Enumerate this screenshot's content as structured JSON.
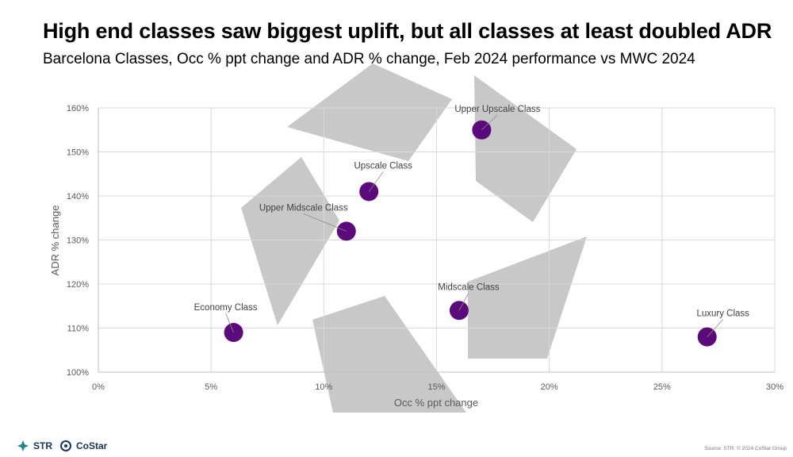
{
  "title": "High end classes saw biggest uplift, but all classes at least doubled ADR",
  "subtitle": "Barcelona Classes, Occ % ppt change and ADR % change, Feb 2024 performance vs MWC 2024",
  "footer": {
    "logo_str": "STR",
    "logo_costar": "CoStar",
    "source": "Source: STR. © 2024 CoStar Group"
  },
  "colors": {
    "point": "#5a0a7a",
    "grid": "#d9d9d9",
    "watermark": "#c8c8c8"
  },
  "chart_data": {
    "type": "scatter",
    "title": "",
    "xlabel": "Occ % ppt change",
    "ylabel": "ADR % change",
    "xlim": [
      0,
      30
    ],
    "ylim": [
      100,
      160
    ],
    "xticks": [
      0,
      5,
      10,
      15,
      20,
      25,
      30
    ],
    "xtick_labels": [
      "0%",
      "5%",
      "10%",
      "15%",
      "20%",
      "25%",
      "30%"
    ],
    "yticks": [
      100,
      110,
      120,
      130,
      140,
      150,
      160
    ],
    "ytick_labels": [
      "100%",
      "110%",
      "120%",
      "130%",
      "140%",
      "150%",
      "160%"
    ],
    "grid": true,
    "points": [
      {
        "label": "Economy Class",
        "x": 6,
        "y": 109
      },
      {
        "label": "Upper Midscale Class",
        "x": 11,
        "y": 132
      },
      {
        "label": "Upscale Class",
        "x": 12,
        "y": 141
      },
      {
        "label": "Upper Upscale Class",
        "x": 17,
        "y": 155
      },
      {
        "label": "Midscale Class",
        "x": 16,
        "y": 114
      },
      {
        "label": "Luxury Class",
        "x": 27,
        "y": 108
      }
    ]
  }
}
